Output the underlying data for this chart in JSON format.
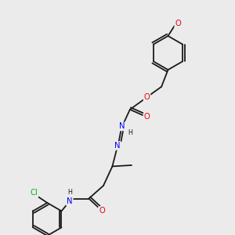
{
  "background_color": "#ebebeb",
  "bond_color": "#1a1a1a",
  "atom_colors": {
    "O": "#e8000d",
    "N": "#0000ff",
    "Cl": "#00b500",
    "C": "#1a1a1a",
    "H": "#1a1a1a"
  },
  "lw": 1.3,
  "fs": 7.2,
  "fs_sub": 5.8
}
